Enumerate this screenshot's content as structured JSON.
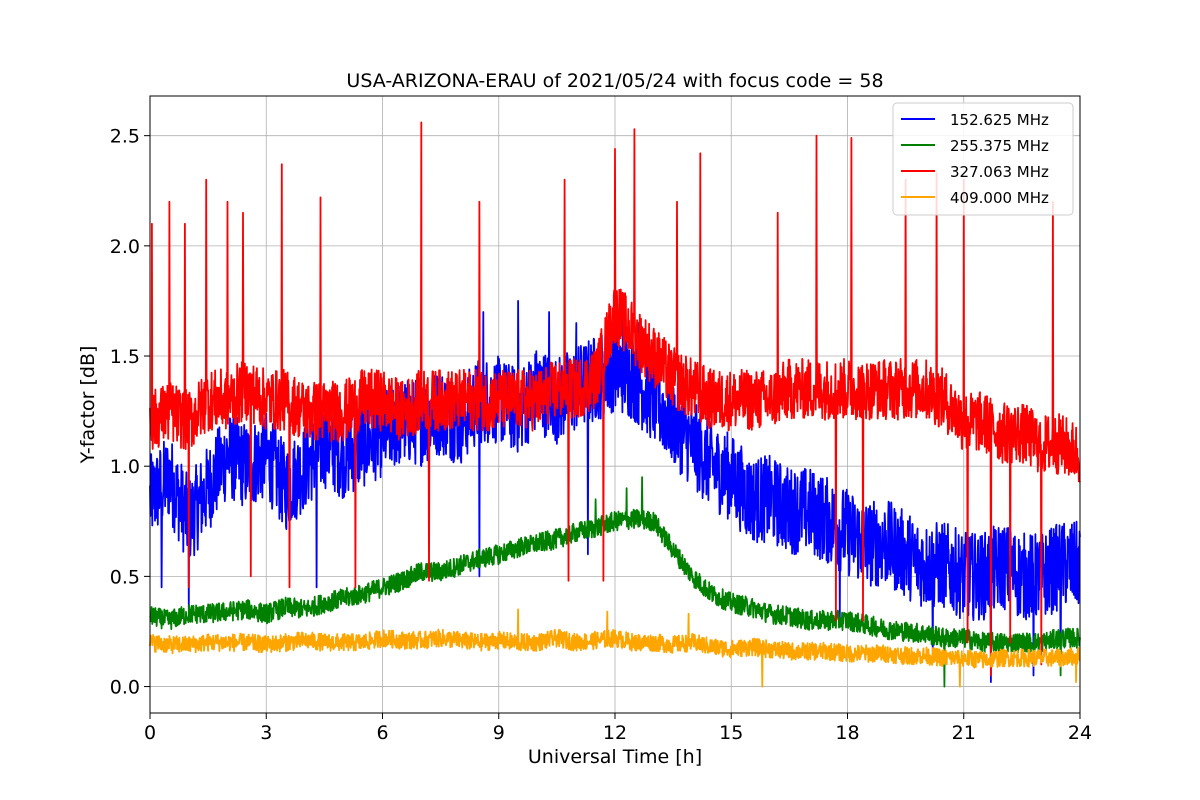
{
  "chart_data": {
    "type": "line",
    "title": "USA-ARIZONA-ERAU of 2021/05/24 with focus code = 58",
    "xlabel": "Universal Time [h]",
    "ylabel": "Y-factor [dB]",
    "xlim": [
      0,
      24
    ],
    "ylim": [
      -0.12,
      2.68
    ],
    "xticks": [
      0,
      3,
      6,
      9,
      12,
      15,
      18,
      21,
      24
    ],
    "xtick_labels": [
      "0",
      "3",
      "6",
      "9",
      "12",
      "15",
      "18",
      "21",
      "24"
    ],
    "yticks": [
      0.0,
      0.5,
      1.0,
      1.5,
      2.0,
      2.5
    ],
    "ytick_labels": [
      "0.0",
      "0.5",
      "1.0",
      "1.5",
      "2.0",
      "2.5"
    ],
    "grid": true,
    "legend_position": "top-right",
    "x": [
      0,
      0.5,
      1,
      1.5,
      2,
      2.5,
      3,
      3.5,
      4,
      4.5,
      5,
      5.5,
      6,
      6.5,
      7,
      7.5,
      8,
      8.5,
      9,
      9.5,
      10,
      10.5,
      11,
      11.5,
      12,
      12.5,
      13,
      13.5,
      14,
      14.5,
      15,
      15.5,
      16,
      16.5,
      17,
      17.5,
      18,
      18.5,
      19,
      19.5,
      20,
      20.5,
      21,
      21.5,
      22,
      22.5,
      23,
      23.5,
      24
    ],
    "series": [
      {
        "name": "152.625 MHz",
        "color": "#0000ff",
        "values": [
          0.85,
          0.95,
          0.75,
          0.9,
          1.05,
          1.0,
          1.05,
          0.9,
          1.0,
          1.1,
          1.05,
          1.1,
          1.15,
          1.2,
          1.2,
          1.25,
          1.2,
          1.3,
          1.3,
          1.25,
          1.35,
          1.3,
          1.35,
          1.4,
          1.45,
          1.4,
          1.3,
          1.2,
          1.1,
          1.0,
          0.95,
          0.85,
          0.85,
          0.8,
          0.8,
          0.75,
          0.7,
          0.65,
          0.65,
          0.6,
          0.55,
          0.55,
          0.5,
          0.5,
          0.55,
          0.5,
          0.5,
          0.55,
          0.55
        ],
        "spikes": [
          {
            "x": 8.6,
            "y": 1.7
          },
          {
            "x": 9.5,
            "y": 1.75
          },
          {
            "x": 10.3,
            "y": 1.7
          },
          {
            "x": 11.0,
            "y": 1.65
          },
          {
            "x": 12.2,
            "y": 1.7
          },
          {
            "x": 12.6,
            "y": 1.65
          }
        ],
        "dips": [
          {
            "x": 0.3,
            "y": 0.45
          },
          {
            "x": 1.0,
            "y": 0.35
          },
          {
            "x": 4.3,
            "y": 0.45
          },
          {
            "x": 8.5,
            "y": 0.5
          },
          {
            "x": 11.3,
            "y": 0.6
          },
          {
            "x": 17.8,
            "y": 0.3
          },
          {
            "x": 20.2,
            "y": 0.15
          },
          {
            "x": 21.7,
            "y": 0.02
          },
          {
            "x": 22.8,
            "y": 0.05
          },
          {
            "x": 23.5,
            "y": 0.1
          }
        ]
      },
      {
        "name": "255.375 MHz",
        "color": "#008000",
        "values": [
          0.32,
          0.3,
          0.33,
          0.33,
          0.34,
          0.35,
          0.33,
          0.36,
          0.35,
          0.38,
          0.4,
          0.42,
          0.45,
          0.48,
          0.52,
          0.52,
          0.55,
          0.58,
          0.6,
          0.63,
          0.65,
          0.67,
          0.7,
          0.72,
          0.75,
          0.76,
          0.75,
          0.62,
          0.5,
          0.42,
          0.38,
          0.36,
          0.33,
          0.32,
          0.3,
          0.3,
          0.3,
          0.28,
          0.26,
          0.25,
          0.24,
          0.22,
          0.22,
          0.2,
          0.2,
          0.2,
          0.2,
          0.22,
          0.22
        ],
        "spikes": [
          {
            "x": 11.5,
            "y": 0.85
          },
          {
            "x": 12.3,
            "y": 0.9
          },
          {
            "x": 12.7,
            "y": 0.95
          }
        ],
        "dips": [
          {
            "x": 20.5,
            "y": 0.0
          },
          {
            "x": 23.5,
            "y": 0.05
          }
        ]
      },
      {
        "name": "327.063 MHz",
        "color": "#ff0000",
        "values": [
          1.2,
          1.25,
          1.2,
          1.3,
          1.3,
          1.35,
          1.3,
          1.3,
          1.25,
          1.25,
          1.25,
          1.3,
          1.3,
          1.25,
          1.3,
          1.3,
          1.3,
          1.3,
          1.3,
          1.3,
          1.3,
          1.35,
          1.35,
          1.4,
          1.7,
          1.6,
          1.5,
          1.4,
          1.35,
          1.3,
          1.3,
          1.3,
          1.3,
          1.35,
          1.35,
          1.35,
          1.35,
          1.35,
          1.35,
          1.35,
          1.35,
          1.3,
          1.2,
          1.2,
          1.15,
          1.15,
          1.1,
          1.1,
          1.05
        ],
        "spikes": [
          {
            "x": 0.05,
            "y": 2.1
          },
          {
            "x": 0.5,
            "y": 2.2
          },
          {
            "x": 0.9,
            "y": 2.1
          },
          {
            "x": 1.45,
            "y": 2.3
          },
          {
            "x": 2.0,
            "y": 2.2
          },
          {
            "x": 2.4,
            "y": 2.15
          },
          {
            "x": 3.4,
            "y": 2.37
          },
          {
            "x": 4.4,
            "y": 2.22
          },
          {
            "x": 7.0,
            "y": 2.56
          },
          {
            "x": 8.5,
            "y": 2.2
          },
          {
            "x": 10.7,
            "y": 2.3
          },
          {
            "x": 11.7,
            "y": 2.0
          },
          {
            "x": 12.0,
            "y": 2.44
          },
          {
            "x": 12.5,
            "y": 2.53
          },
          {
            "x": 13.6,
            "y": 2.2
          },
          {
            "x": 14.2,
            "y": 2.42
          },
          {
            "x": 16.2,
            "y": 2.15
          },
          {
            "x": 17.2,
            "y": 2.5
          },
          {
            "x": 18.1,
            "y": 2.49
          },
          {
            "x": 19.5,
            "y": 2.3
          },
          {
            "x": 20.3,
            "y": 2.33
          },
          {
            "x": 21.0,
            "y": 2.3
          },
          {
            "x": 23.3,
            "y": 2.2
          }
        ],
        "dips": [
          {
            "x": 1.0,
            "y": 0.45
          },
          {
            "x": 2.6,
            "y": 0.5
          },
          {
            "x": 3.6,
            "y": 0.45
          },
          {
            "x": 5.3,
            "y": 0.45
          },
          {
            "x": 7.2,
            "y": 0.48
          },
          {
            "x": 10.8,
            "y": 0.48
          },
          {
            "x": 11.7,
            "y": 0.48
          },
          {
            "x": 17.7,
            "y": 0.3
          },
          {
            "x": 18.4,
            "y": 0.3
          },
          {
            "x": 21.1,
            "y": 0.2
          },
          {
            "x": 21.7,
            "y": 0.05
          },
          {
            "x": 22.2,
            "y": 0.2
          },
          {
            "x": 23.0,
            "y": 0.1
          }
        ]
      },
      {
        "name": "409.000 MHz",
        "color": "#ffa500",
        "values": [
          0.2,
          0.19,
          0.19,
          0.2,
          0.2,
          0.2,
          0.19,
          0.2,
          0.21,
          0.2,
          0.2,
          0.2,
          0.22,
          0.21,
          0.21,
          0.22,
          0.21,
          0.2,
          0.21,
          0.2,
          0.2,
          0.22,
          0.2,
          0.21,
          0.22,
          0.2,
          0.2,
          0.19,
          0.2,
          0.18,
          0.17,
          0.18,
          0.17,
          0.16,
          0.16,
          0.16,
          0.15,
          0.15,
          0.15,
          0.14,
          0.14,
          0.13,
          0.13,
          0.12,
          0.13,
          0.13,
          0.13,
          0.13,
          0.14
        ],
        "spikes": [
          {
            "x": 9.5,
            "y": 0.35
          },
          {
            "x": 11.8,
            "y": 0.34
          },
          {
            "x": 13.9,
            "y": 0.33
          }
        ],
        "dips": [
          {
            "x": 15.8,
            "y": 0.0
          },
          {
            "x": 20.9,
            "y": 0.0
          },
          {
            "x": 23.9,
            "y": 0.02
          }
        ]
      }
    ]
  }
}
